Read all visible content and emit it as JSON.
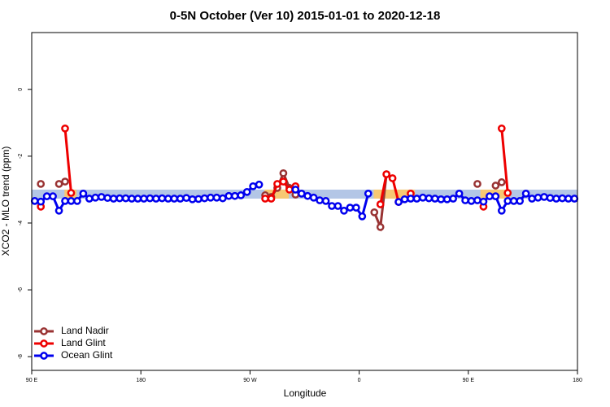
{
  "chart_data": {
    "type": "line",
    "title": "0-5N October (Ver 10)   2015-01-01 to 2020-12-18",
    "xlabel": "Longitude",
    "ylabel": "XCO2 - MLO trend (ppm)",
    "xlim": [
      90,
      540
    ],
    "ylim": [
      -8.41,
      1.7
    ],
    "xticks": [
      {
        "value": 90,
        "label": "90 E"
      },
      180,
      {
        "value": 270,
        "label": "90 W"
      },
      {
        "value": 360,
        "label": "0"
      },
      {
        "value": 450,
        "label": "90 E"
      },
      180
    ],
    "yticks": [
      0,
      -2,
      -4,
      -6,
      -8
    ],
    "legend": "bottomleft",
    "bands": [
      {
        "color": "#b3c6e6",
        "xlim": [
          90,
          540
        ],
        "ylim": [
          -3.27,
          -3.0
        ]
      },
      {
        "color": "#f7c873",
        "xlim": [
          117,
          127
        ],
        "ylim": [
          -3.27,
          -3.0
        ]
      },
      {
        "color": "#f7c873",
        "xlim": [
          282,
          302
        ],
        "ylim": [
          -3.27,
          -3.0
        ]
      },
      {
        "color": "#f7c873",
        "xlim": [
          372,
          406
        ],
        "ylim": [
          -3.27,
          -3.0
        ]
      },
      {
        "color": "#f7c873",
        "xlim": [
          460,
          483
        ],
        "ylim": [
          -3.27,
          -3.0
        ]
      }
    ],
    "x": [
      92.5,
      97.5,
      102.5,
      107.5,
      112.5,
      117.5,
      122.5,
      127.5,
      132.5,
      137.5,
      142.5,
      147.5,
      152.5,
      157.5,
      162.5,
      167.5,
      172.5,
      177.5,
      182.5,
      187.5,
      192.5,
      197.5,
      202.5,
      207.5,
      212.5,
      217.5,
      222.5,
      227.5,
      232.5,
      237.5,
      242.5,
      247.5,
      252.5,
      257.5,
      262.5,
      267.5,
      272.5,
      277.5,
      282.5,
      287.5,
      292.5,
      297.5,
      302.5,
      307.5,
      312.5,
      317.5,
      322.5,
      327.5,
      332.5,
      337.5,
      342.5,
      347.5,
      352.5,
      357.5,
      362.5,
      367.5,
      372.5,
      377.5,
      382.5,
      387.5,
      392.5,
      397.5,
      402.5,
      407.5,
      412.5,
      417.5,
      422.5,
      427.5,
      432.5,
      437.5,
      442.5,
      447.5,
      452.5,
      457.5,
      462.5,
      467.5,
      472.5,
      477.5,
      482.5,
      487.5,
      492.5,
      497.5,
      502.5,
      507.5,
      512.5,
      517.5,
      522.5,
      527.5,
      532.5,
      537.5
    ],
    "series": [
      {
        "name": "Land Nadir",
        "color": "#993333",
        "values": [
          null,
          -2.83,
          null,
          null,
          -2.83,
          -2.76,
          null,
          null,
          null,
          null,
          null,
          null,
          null,
          null,
          null,
          null,
          null,
          null,
          null,
          null,
          null,
          null,
          null,
          null,
          null,
          null,
          null,
          null,
          null,
          null,
          null,
          null,
          null,
          null,
          null,
          null,
          null,
          null,
          -3.17,
          -3.22,
          -2.95,
          -2.51,
          -2.95,
          -3.15,
          null,
          null,
          null,
          null,
          null,
          null,
          null,
          null,
          null,
          null,
          null,
          null,
          -3.68,
          -4.12,
          -2.54,
          null,
          null,
          null,
          null,
          null,
          null,
          null,
          null,
          null,
          null,
          null,
          null,
          null,
          null,
          -2.83,
          null,
          null,
          -2.88,
          -2.78,
          null,
          null,
          null,
          null,
          null,
          null,
          null,
          null,
          null,
          null,
          null,
          null
        ]
      },
      {
        "name": "Land Glint",
        "color": "#ee0000",
        "values": [
          null,
          -3.51,
          null,
          null,
          null,
          -1.17,
          -3.1,
          null,
          null,
          null,
          null,
          null,
          null,
          null,
          null,
          null,
          null,
          null,
          null,
          null,
          null,
          null,
          null,
          null,
          null,
          null,
          null,
          null,
          null,
          null,
          null,
          null,
          null,
          null,
          null,
          null,
          null,
          null,
          -3.27,
          -3.27,
          -2.83,
          -2.76,
          -3.0,
          -2.9,
          null,
          null,
          null,
          null,
          null,
          null,
          null,
          null,
          null,
          null,
          null,
          null,
          null,
          -3.44,
          -2.54,
          -2.66,
          -3.37,
          null,
          -3.12,
          null,
          null,
          null,
          null,
          null,
          null,
          null,
          null,
          null,
          null,
          null,
          -3.51,
          null,
          null,
          -1.17,
          -3.1,
          null,
          null,
          null,
          null,
          null,
          null,
          null,
          null,
          null,
          null,
          null
        ]
      },
      {
        "name": "Ocean Glint",
        "color": "#0000ee",
        "values": [
          -3.34,
          -3.36,
          -3.2,
          -3.2,
          -3.63,
          -3.34,
          -3.34,
          -3.34,
          -3.12,
          -3.27,
          -3.24,
          -3.22,
          -3.25,
          -3.27,
          -3.26,
          -3.26,
          -3.27,
          -3.27,
          -3.27,
          -3.26,
          -3.27,
          -3.26,
          -3.27,
          -3.27,
          -3.27,
          -3.25,
          -3.29,
          -3.28,
          -3.26,
          -3.24,
          -3.24,
          -3.26,
          -3.19,
          -3.19,
          -3.17,
          -3.07,
          -2.9,
          -2.85,
          null,
          null,
          null,
          null,
          null,
          -3.0,
          -3.12,
          -3.19,
          -3.24,
          -3.32,
          -3.34,
          -3.49,
          -3.49,
          -3.63,
          -3.54,
          -3.54,
          -3.8,
          -3.12,
          null,
          null,
          null,
          null,
          -3.37,
          -3.29,
          -3.27,
          -3.27,
          -3.24,
          -3.26,
          -3.27,
          -3.29,
          -3.29,
          -3.27,
          -3.12,
          -3.32,
          -3.34,
          -3.32,
          -3.36,
          -3.2,
          -3.2,
          -3.63,
          -3.34,
          -3.34,
          -3.34,
          -3.12,
          -3.27,
          -3.24,
          -3.22,
          -3.25,
          -3.27,
          -3.26,
          -3.27,
          -3.27
        ]
      }
    ]
  }
}
